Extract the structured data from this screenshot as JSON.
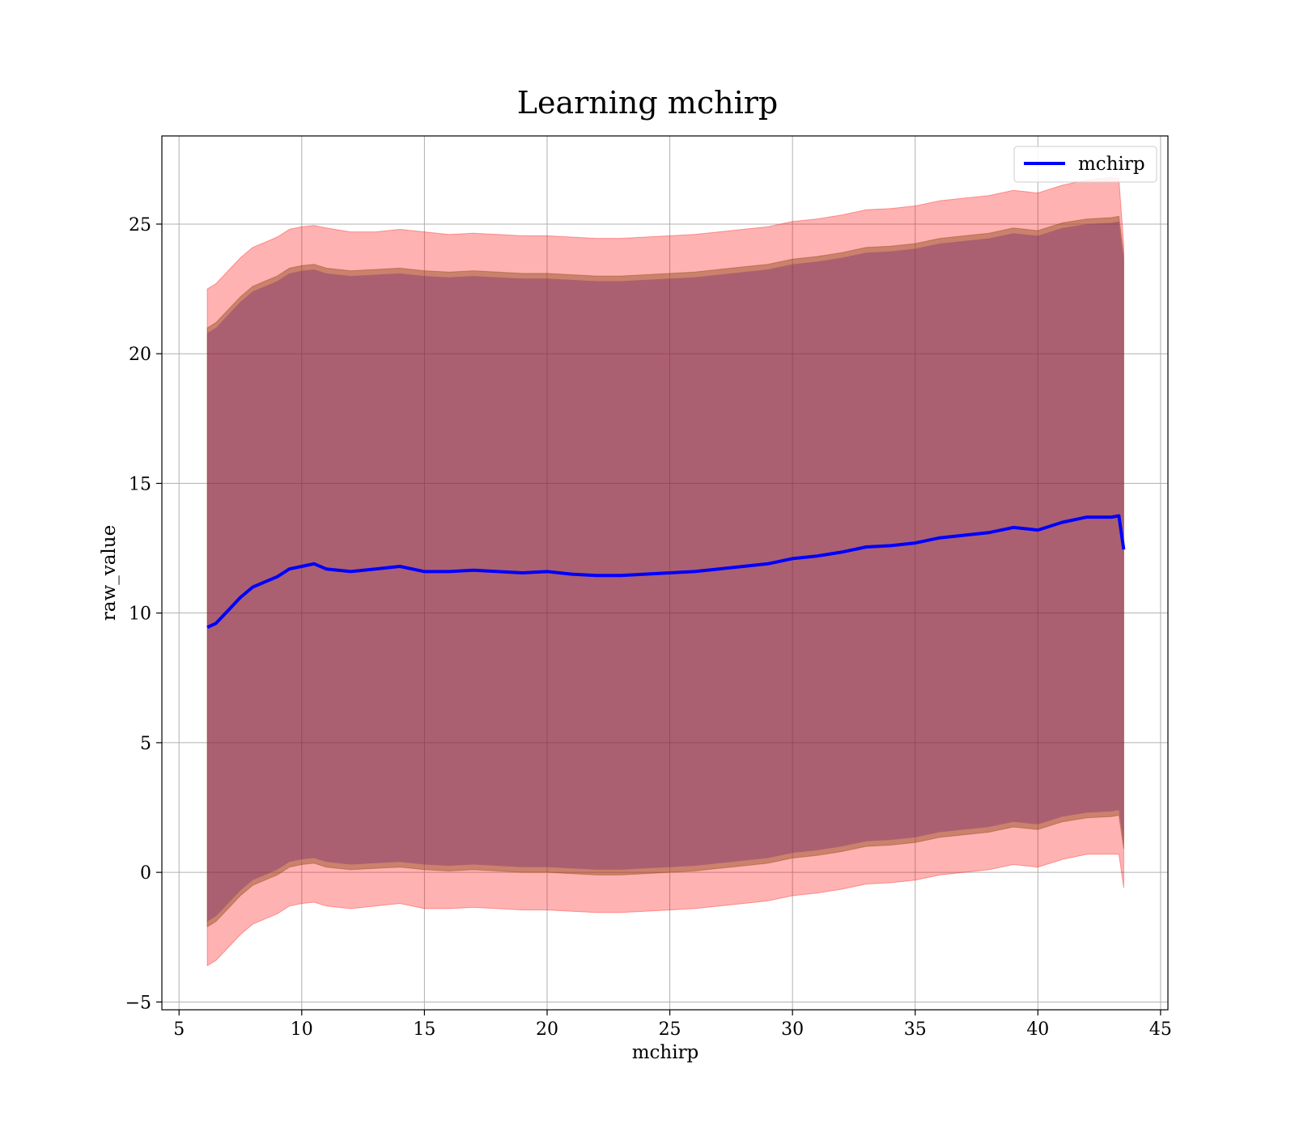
{
  "chart_data": {
    "type": "line",
    "title": "Learning mchirp",
    "xlabel": "mchirp",
    "ylabel": "raw_value",
    "xlim": [
      4.3,
      45.3
    ],
    "ylim": [
      -5.3,
      28.4
    ],
    "xticks": [
      5,
      10,
      15,
      20,
      25,
      30,
      35,
      40,
      45
    ],
    "yticks": [
      -5,
      0,
      5,
      10,
      15,
      20,
      25
    ],
    "xtick_labels": [
      "5",
      "10",
      "15",
      "20",
      "25",
      "30",
      "35",
      "40",
      "45"
    ],
    "ytick_labels": [
      "−5",
      "0",
      "5",
      "10",
      "15",
      "20",
      "25"
    ],
    "grid": true,
    "legend": {
      "position": "top-right",
      "entries": [
        "mchirp"
      ]
    },
    "colors": {
      "line": "#0000ff",
      "outer_band": "#ff0000",
      "inner_band": "#8b4513",
      "core_band": "#4b0082",
      "grid": "#b0b0b0"
    },
    "x": [
      6.15,
      6.5,
      7.0,
      7.5,
      8.0,
      8.5,
      9.0,
      9.5,
      10.0,
      10.5,
      11.0,
      12.0,
      13.0,
      14.0,
      15.0,
      16.0,
      17.0,
      18.0,
      19.0,
      20.0,
      21.0,
      22.0,
      23.0,
      24.0,
      25.0,
      26.0,
      27.0,
      28.0,
      29.0,
      30.0,
      31.0,
      32.0,
      33.0,
      34.0,
      35.0,
      36.0,
      37.0,
      38.0,
      39.0,
      40.0,
      41.0,
      42.0,
      43.0,
      43.3,
      43.5
    ],
    "series": [
      {
        "name": "mchirp",
        "role": "line",
        "values": [
          9.45,
          9.6,
          10.1,
          10.6,
          11.0,
          11.2,
          11.4,
          11.7,
          11.8,
          11.9,
          11.7,
          11.6,
          11.7,
          11.8,
          11.6,
          11.6,
          11.65,
          11.6,
          11.55,
          11.6,
          11.5,
          11.45,
          11.45,
          11.5,
          11.55,
          11.6,
          11.7,
          11.8,
          11.9,
          12.1,
          12.2,
          12.35,
          12.55,
          12.6,
          12.7,
          12.9,
          13.0,
          13.1,
          13.3,
          13.2,
          13.5,
          13.7,
          13.7,
          13.75,
          12.45
        ]
      },
      {
        "role": "outer_upper",
        "values": [
          22.5,
          22.7,
          23.2,
          23.7,
          24.1,
          24.3,
          24.5,
          24.8,
          24.9,
          24.95,
          24.85,
          24.7,
          24.7,
          24.8,
          24.7,
          24.6,
          24.65,
          24.6,
          24.55,
          24.55,
          24.5,
          24.45,
          24.45,
          24.5,
          24.55,
          24.6,
          24.7,
          24.8,
          24.9,
          25.1,
          25.2,
          25.35,
          25.55,
          25.6,
          25.7,
          25.9,
          26.0,
          26.1,
          26.3,
          26.2,
          26.5,
          26.7,
          26.8,
          26.75,
          24.2
        ]
      },
      {
        "role": "outer_lower",
        "values": [
          -3.6,
          -3.4,
          -2.9,
          -2.4,
          -2.0,
          -1.8,
          -1.6,
          -1.3,
          -1.2,
          -1.15,
          -1.3,
          -1.4,
          -1.3,
          -1.2,
          -1.4,
          -1.4,
          -1.35,
          -1.4,
          -1.45,
          -1.45,
          -1.5,
          -1.55,
          -1.55,
          -1.5,
          -1.45,
          -1.4,
          -1.3,
          -1.2,
          -1.1,
          -0.9,
          -0.8,
          -0.65,
          -0.45,
          -0.4,
          -0.3,
          -0.1,
          0.0,
          0.1,
          0.3,
          0.2,
          0.5,
          0.7,
          0.7,
          0.7,
          -0.6
        ]
      },
      {
        "role": "inner_upper",
        "values": [
          21.0,
          21.2,
          21.7,
          22.2,
          22.6,
          22.8,
          23.0,
          23.3,
          23.4,
          23.45,
          23.3,
          23.2,
          23.25,
          23.3,
          23.2,
          23.15,
          23.2,
          23.15,
          23.1,
          23.1,
          23.05,
          23.0,
          23.0,
          23.05,
          23.1,
          23.15,
          23.25,
          23.35,
          23.45,
          23.65,
          23.75,
          23.9,
          24.1,
          24.15,
          24.25,
          24.45,
          24.55,
          24.65,
          24.85,
          24.75,
          25.05,
          25.2,
          25.25,
          25.3,
          23.8
        ]
      },
      {
        "role": "inner_lower",
        "values": [
          -2.1,
          -1.9,
          -1.4,
          -0.9,
          -0.5,
          -0.3,
          -0.1,
          0.2,
          0.3,
          0.35,
          0.2,
          0.1,
          0.15,
          0.2,
          0.1,
          0.05,
          0.1,
          0.05,
          0.0,
          0.0,
          -0.05,
          -0.1,
          -0.1,
          -0.05,
          0.0,
          0.05,
          0.15,
          0.25,
          0.35,
          0.55,
          0.65,
          0.8,
          1.0,
          1.05,
          1.15,
          1.35,
          1.45,
          1.55,
          1.75,
          1.65,
          1.95,
          2.1,
          2.15,
          2.2,
          0.9
        ]
      },
      {
        "role": "core_upper",
        "values": [
          20.8,
          21.0,
          21.5,
          22.0,
          22.4,
          22.6,
          22.8,
          23.1,
          23.2,
          23.25,
          23.1,
          23.0,
          23.05,
          23.1,
          23.0,
          22.95,
          23.0,
          22.95,
          22.9,
          22.9,
          22.85,
          22.8,
          22.8,
          22.85,
          22.9,
          22.95,
          23.05,
          23.15,
          23.25,
          23.45,
          23.55,
          23.7,
          23.9,
          23.95,
          24.05,
          24.25,
          24.35,
          24.45,
          24.65,
          24.55,
          24.85,
          25.0,
          25.05,
          25.1,
          23.6
        ]
      },
      {
        "role": "core_lower",
        "values": [
          -1.9,
          -1.7,
          -1.2,
          -0.7,
          -0.3,
          -0.1,
          0.1,
          0.4,
          0.5,
          0.55,
          0.4,
          0.3,
          0.35,
          0.4,
          0.3,
          0.25,
          0.3,
          0.25,
          0.2,
          0.2,
          0.15,
          0.1,
          0.1,
          0.15,
          0.2,
          0.25,
          0.35,
          0.45,
          0.55,
          0.75,
          0.85,
          1.0,
          1.2,
          1.25,
          1.35,
          1.55,
          1.65,
          1.75,
          1.95,
          1.85,
          2.15,
          2.3,
          2.35,
          2.4,
          1.1
        ]
      }
    ]
  }
}
